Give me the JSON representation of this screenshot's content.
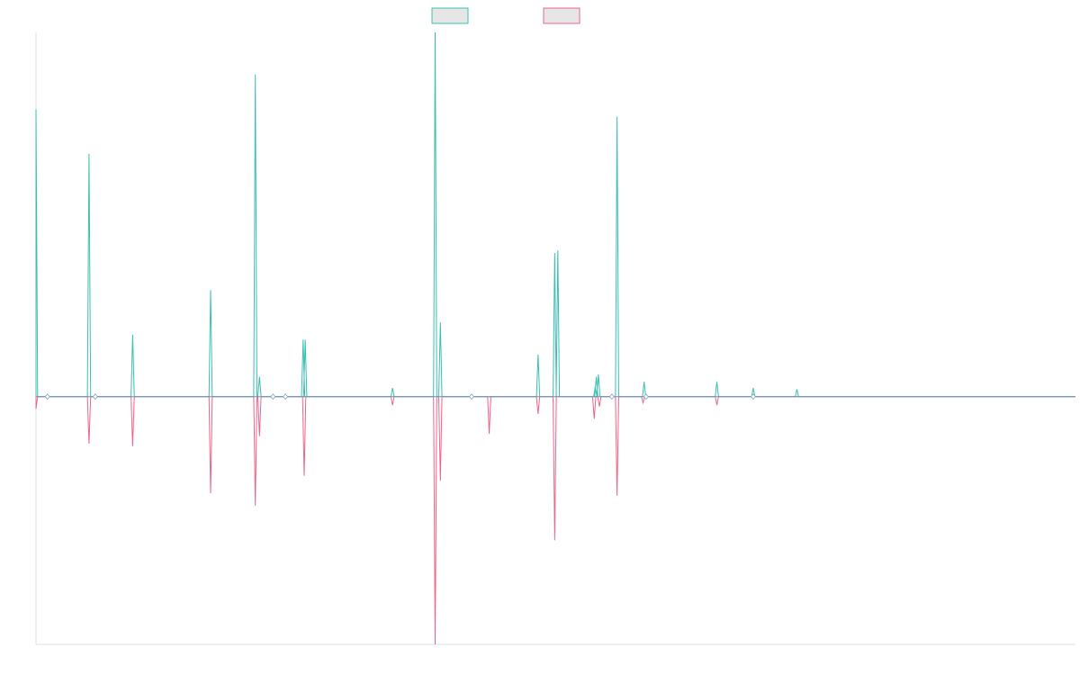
{
  "chart_data": {
    "type": "line",
    "title": "",
    "xlabel": "",
    "ylabel": "",
    "grid": false,
    "legend_position": "top-center",
    "colors": {
      "series_a": "#3bbfb3",
      "series_b": "#f0648a",
      "axis": "#e0e0e0",
      "legend_fill": "#e6e6e6"
    },
    "xlim": [
      0,
      1000
    ],
    "ylim": [
      -10,
      14.7
    ],
    "series": [
      {
        "key": "a",
        "name": "",
        "peaks": [
          [
            0,
            11.6
          ],
          [
            51,
            9.8
          ],
          [
            93,
            2.5
          ],
          [
            168,
            4.3
          ],
          [
            211,
            13.0
          ],
          [
            215,
            0.8
          ],
          [
            257,
            2.3
          ],
          [
            259,
            2.3
          ],
          [
            384,
            14.7
          ],
          [
            389,
            3.0
          ],
          [
            483,
            1.7
          ],
          [
            499,
            5.8
          ],
          [
            502,
            5.9
          ],
          [
            538,
            0.4
          ],
          [
            539,
            0.8
          ],
          [
            541,
            0.9
          ],
          [
            559,
            11.3
          ],
          [
            585,
            0.6
          ],
          [
            655,
            0.6
          ],
          [
            343,
            0.35
          ],
          [
            690,
            0.35
          ],
          [
            732,
            0.3
          ]
        ]
      },
      {
        "key": "b",
        "name": "",
        "peaks": [
          [
            0,
            -0.5
          ],
          [
            51,
            -1.9
          ],
          [
            93,
            -2.0
          ],
          [
            168,
            -3.9
          ],
          [
            211,
            -4.4
          ],
          [
            215,
            -1.6
          ],
          [
            258,
            -3.2
          ],
          [
            343,
            -0.35
          ],
          [
            384,
            -10.0
          ],
          [
            389,
            -3.4
          ],
          [
            436,
            -1.5
          ],
          [
            483,
            -0.7
          ],
          [
            499,
            -5.8
          ],
          [
            537,
            -0.9
          ],
          [
            542,
            -0.4
          ],
          [
            559,
            -4.0
          ],
          [
            584,
            -0.25
          ],
          [
            655,
            -0.35
          ]
        ]
      }
    ],
    "markers": [
      [
        11,
        0
      ],
      [
        57,
        0
      ],
      [
        228,
        0
      ],
      [
        240,
        0
      ],
      [
        419,
        0
      ],
      [
        554,
        0
      ],
      [
        587,
        0
      ],
      [
        690,
        0
      ]
    ]
  }
}
